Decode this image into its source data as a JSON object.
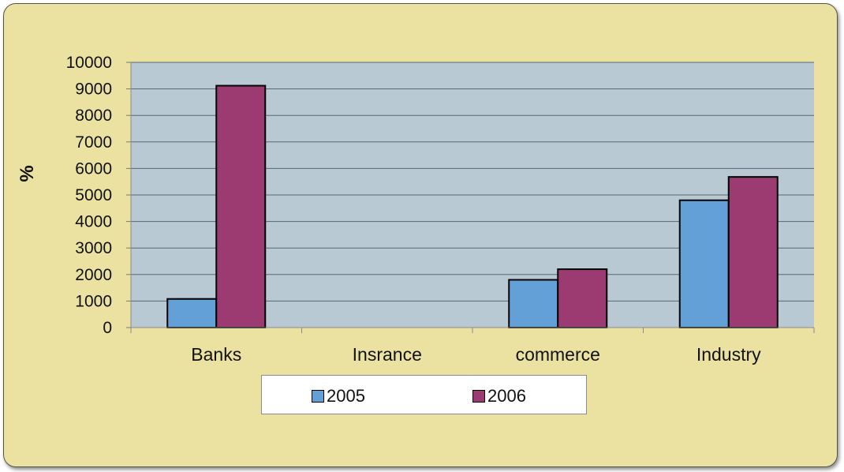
{
  "chart_data": {
    "type": "bar",
    "title": "",
    "xlabel": "",
    "ylabel": "%",
    "ylim": [
      0,
      10000
    ],
    "yticks": [
      0,
      1000,
      2000,
      3000,
      4000,
      5000,
      6000,
      7000,
      8000,
      9000,
      10000
    ],
    "categories": [
      "Banks",
      "Insrance",
      "commerce",
      "Industry"
    ],
    "series": [
      {
        "name": "2005",
        "color": "#63a0d8",
        "values": [
          1080,
          0,
          1800,
          4800
        ]
      },
      {
        "name": "2006",
        "color": "#9c3a72",
        "values": [
          9120,
          0,
          2200,
          5680
        ]
      }
    ],
    "grid": true,
    "legend_position": "bottom",
    "plot_background": "#b9c9d3",
    "frame_background": "#ebe2a2"
  }
}
